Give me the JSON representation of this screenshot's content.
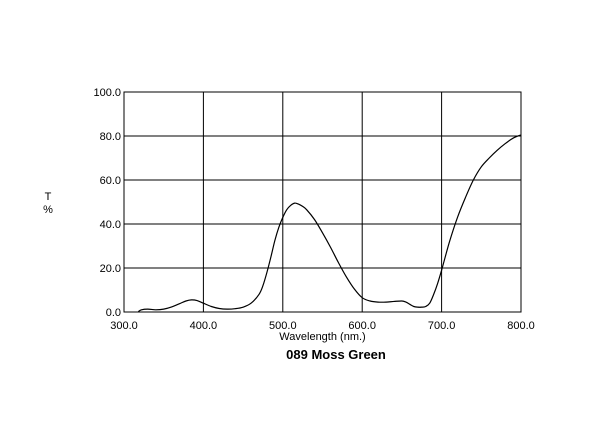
{
  "chart_data": {
    "type": "line",
    "title": "089 Moss Green",
    "xlabel": "Wavelength (nm.)",
    "ylabel_lines": [
      "T",
      "%"
    ],
    "xlim": [
      300,
      800
    ],
    "ylim": [
      0,
      100
    ],
    "xticks": [
      300,
      400,
      500,
      600,
      700,
      800
    ],
    "xtick_labels": [
      "300.0",
      "400.0",
      "500.0",
      "600.0",
      "700.0",
      "800.0"
    ],
    "yticks": [
      0,
      20,
      40,
      60,
      80,
      100
    ],
    "ytick_labels": [
      "0.0",
      "20.0",
      "40.0",
      "60.0",
      "80.0",
      "100.0"
    ],
    "grid": true,
    "line_color": "#000000",
    "series": [
      {
        "x": [
          318,
          322,
          330,
          340,
          350,
          360,
          370,
          378,
          385,
          392,
          400,
          410,
          420,
          430,
          440,
          450,
          460,
          470,
          475,
          480,
          485,
          490,
          495,
          500,
          505,
          510,
          515,
          520,
          525,
          530,
          540,
          550,
          560,
          570,
          580,
          590,
          600,
          610,
          620,
          630,
          640,
          650,
          655,
          660,
          665,
          670,
          675,
          680,
          685,
          690,
          695,
          700,
          710,
          720,
          730,
          740,
          750,
          760,
          770,
          780,
          790,
          800
        ],
        "y": [
          0.2,
          1.0,
          1.3,
          1.0,
          1.3,
          2.3,
          3.8,
          5.0,
          5.5,
          5.2,
          4.0,
          2.5,
          1.6,
          1.3,
          1.5,
          2.2,
          4.0,
          8.0,
          12.0,
          18.0,
          25.0,
          32.5,
          38.5,
          43.0,
          46.5,
          48.5,
          49.5,
          49.0,
          48.0,
          46.5,
          42.0,
          36.0,
          29.5,
          22.5,
          16.0,
          10.5,
          6.5,
          5.0,
          4.5,
          4.5,
          4.8,
          5.0,
          4.5,
          3.5,
          2.5,
          2.2,
          2.2,
          2.5,
          4.0,
          8.0,
          13.0,
          19.0,
          32.0,
          43.0,
          52.0,
          60.0,
          66.0,
          70.0,
          73.5,
          76.5,
          79.0,
          80.5
        ]
      }
    ]
  }
}
